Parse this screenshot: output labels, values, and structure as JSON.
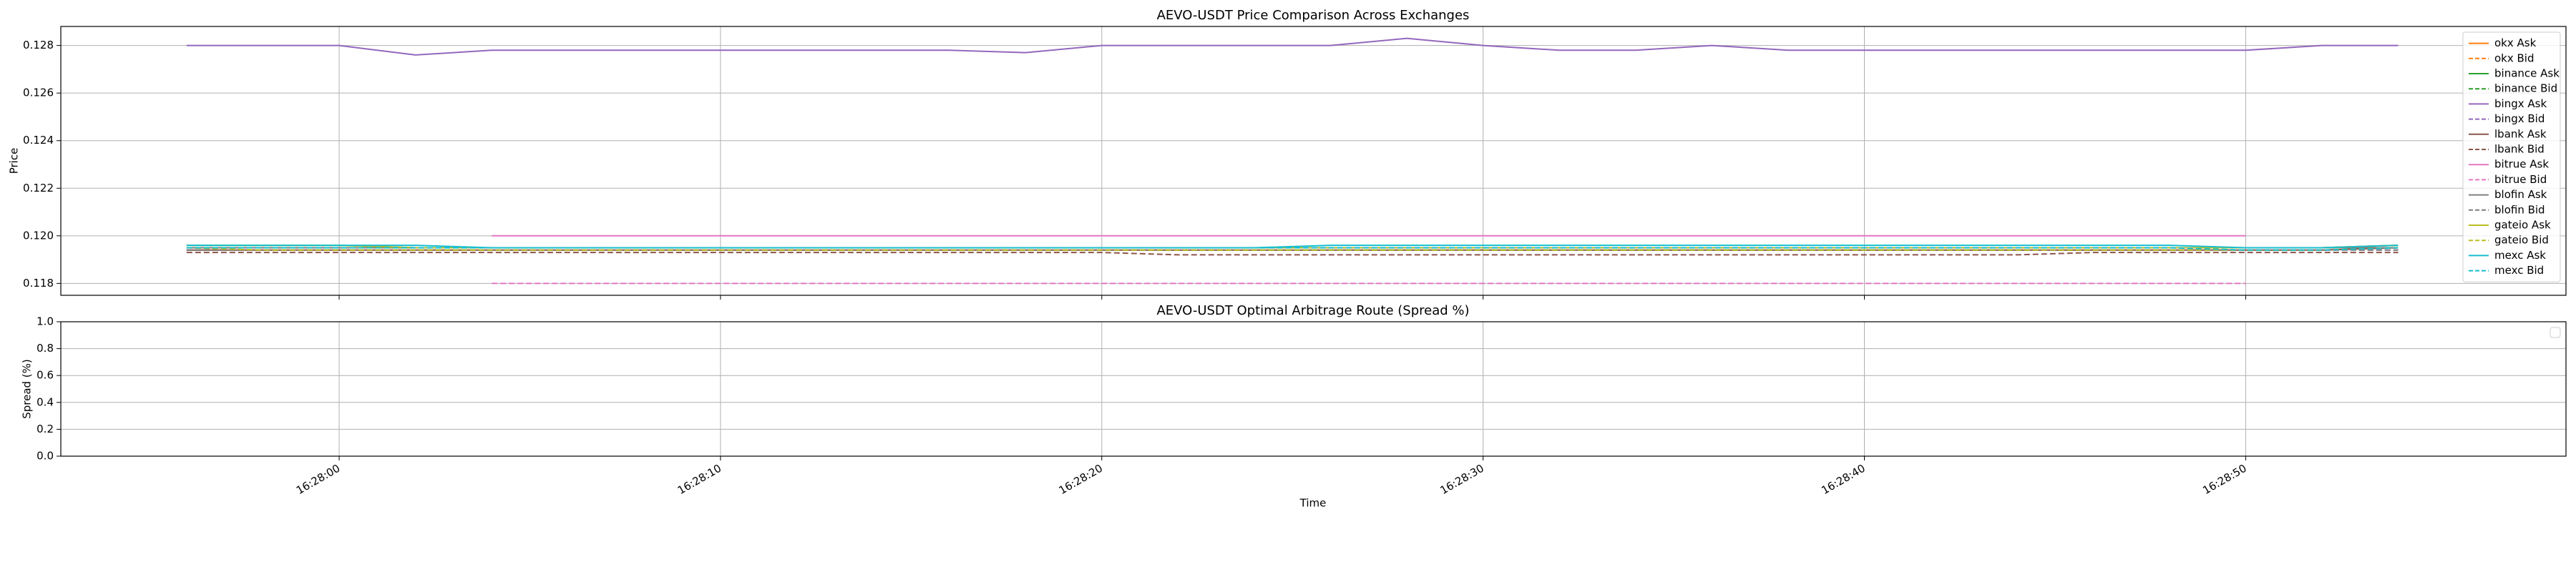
{
  "chart_data": [
    {
      "type": "line",
      "title": "AEVO-USDT Price Comparison Across Exchanges",
      "ylabel": "Price",
      "x": [
        "16:27:56",
        "16:27:58",
        "16:28:00",
        "16:28:02",
        "16:28:04",
        "16:28:06",
        "16:28:08",
        "16:28:10",
        "16:28:12",
        "16:28:14",
        "16:28:16",
        "16:28:18",
        "16:28:20",
        "16:28:22",
        "16:28:24",
        "16:28:26",
        "16:28:28",
        "16:28:30",
        "16:28:32",
        "16:28:34",
        "16:28:36",
        "16:28:38",
        "16:28:40",
        "16:28:42",
        "16:28:44",
        "16:28:46",
        "16:28:48",
        "16:28:50",
        "16:28:52",
        "16:28:54"
      ],
      "xlim": [
        "16:27:52.7",
        "16:28:58.4"
      ],
      "xticks": [
        "16:28:00",
        "16:28:10",
        "16:28:20",
        "16:28:30",
        "16:28:40",
        "16:28:50"
      ],
      "ylim": [
        0.1175,
        0.1288
      ],
      "yticks": [
        0.118,
        {
          "value": 0.12,
          "label": "0.120"
        },
        0.122,
        0.124,
        0.126,
        0.128
      ],
      "grid": true,
      "legend": "upper right",
      "series": [
        {
          "name": "okx Ask",
          "color": "#ff7f0e",
          "linestyle": "solid",
          "values": [
            0.1195,
            0.1195,
            0.1195,
            0.1195,
            0.1195,
            0.1195,
            0.1195,
            0.1195,
            0.1195,
            0.1195,
            0.1195,
            0.1195,
            0.1195,
            0.1195,
            0.1195,
            0.1195,
            0.1195,
            0.1195,
            0.1195,
            0.1195,
            0.1195,
            0.1195,
            0.1195,
            0.1195,
            0.1195,
            0.1195,
            0.1195,
            0.1195,
            0.1195,
            0.1196
          ]
        },
        {
          "name": "okx Bid",
          "color": "#ff7f0e",
          "linestyle": "dashed",
          "values": [
            0.1194,
            0.1194,
            0.1194,
            0.1194,
            0.1194,
            0.1194,
            0.1194,
            0.1194,
            0.1194,
            0.1194,
            0.1194,
            0.1194,
            0.1194,
            0.1194,
            0.1194,
            0.1194,
            0.1194,
            0.1194,
            0.1194,
            0.1194,
            0.1194,
            0.1194,
            0.1194,
            0.1194,
            0.1194,
            0.1194,
            0.1194,
            0.1194,
            0.1194,
            0.1195
          ]
        },
        {
          "name": "binance Ask",
          "color": "#2ca02c",
          "linestyle": "solid",
          "values": [
            0.1196,
            0.1196,
            0.1196,
            0.1195,
            0.1195,
            0.1195,
            0.1195,
            0.1195,
            0.1195,
            0.1195,
            0.1195,
            0.1195,
            0.1195,
            0.1195,
            0.1195,
            0.1195,
            0.1195,
            0.1195,
            0.1195,
            0.1195,
            0.1195,
            0.1195,
            0.1195,
            0.1195,
            0.1195,
            0.1195,
            0.1195,
            0.1195,
            0.1195,
            0.1196
          ]
        },
        {
          "name": "binance Bid",
          "color": "#2ca02c",
          "linestyle": "dashed",
          "values": [
            0.1194,
            0.1194,
            0.1194,
            0.1194,
            0.1194,
            0.1194,
            0.1194,
            0.1194,
            0.1194,
            0.1194,
            0.1194,
            0.1194,
            0.1194,
            0.1194,
            0.1194,
            0.1194,
            0.1194,
            0.1194,
            0.1194,
            0.1194,
            0.1194,
            0.1194,
            0.1194,
            0.1194,
            0.1194,
            0.1194,
            0.1194,
            0.1194,
            0.1194,
            0.1195
          ]
        },
        {
          "name": "bingx Ask",
          "color": "#9467bd",
          "linestyle": "solid",
          "values": [
            0.128,
            0.128,
            0.128,
            0.1276,
            0.1278,
            0.1278,
            0.1278,
            0.1278,
            0.1278,
            0.1278,
            0.1278,
            0.1277,
            0.128,
            0.128,
            0.128,
            0.128,
            0.1283,
            0.128,
            0.1278,
            0.1278,
            0.128,
            0.1278,
            0.1278,
            0.1278,
            0.1278,
            0.1278,
            0.1278,
            0.1278,
            0.128,
            0.128
          ]
        },
        {
          "name": "bingx Bid",
          "color": "#9467bd",
          "linestyle": "dashed",
          "values": [
            0.1194,
            0.1194,
            0.1194,
            0.1194,
            0.1194,
            0.1194,
            0.1194,
            0.1194,
            0.1194,
            0.1194,
            0.1194,
            0.1194,
            0.1194,
            0.1194,
            0.1194,
            0.1194,
            0.1194,
            0.1194,
            0.1194,
            0.1194,
            0.1194,
            0.1194,
            0.1194,
            0.1194,
            0.1194,
            0.1194,
            0.1194,
            0.1194,
            0.1194,
            0.1194
          ]
        },
        {
          "name": "lbank Ask",
          "color": "#8c564b",
          "linestyle": "solid",
          "values": [
            0.1194,
            0.1194,
            0.1194,
            0.1194,
            0.1194,
            0.1194,
            0.1194,
            0.1194,
            0.1194,
            0.1194,
            0.1194,
            0.1194,
            0.1194,
            0.1194,
            0.1194,
            0.1194,
            0.1194,
            0.1194,
            0.1194,
            0.1194,
            0.1194,
            0.1194,
            0.1194,
            0.1194,
            0.1194,
            0.1194,
            0.1194,
            0.1194,
            0.1194,
            0.1195
          ]
        },
        {
          "name": "lbank Bid",
          "color": "#8c564b",
          "linestyle": "dashed",
          "values": [
            0.1193,
            0.1193,
            0.1193,
            0.1193,
            0.1193,
            0.1193,
            0.1193,
            0.1193,
            0.1193,
            0.1193,
            0.1193,
            0.1193,
            0.1193,
            0.1192,
            0.1192,
            0.1192,
            0.1192,
            0.1192,
            0.1192,
            0.1192,
            0.1192,
            0.1192,
            0.1192,
            0.1192,
            0.1192,
            0.1193,
            0.1193,
            0.1193,
            0.1193,
            0.1193
          ]
        },
        {
          "name": "bitrue Ask",
          "color": "#e377c2",
          "linestyle": "solid",
          "values": [
            null,
            null,
            null,
            null,
            0.12,
            0.12,
            0.12,
            0.12,
            0.12,
            0.12,
            0.12,
            0.12,
            0.12,
            0.12,
            0.12,
            0.12,
            0.12,
            0.12,
            0.12,
            0.12,
            0.12,
            0.12,
            0.12,
            0.12,
            0.12,
            0.12,
            0.12,
            0.12,
            null,
            null
          ]
        },
        {
          "name": "bitrue Bid",
          "color": "#e377c2",
          "linestyle": "dashed",
          "values": [
            null,
            null,
            null,
            null,
            0.118,
            0.118,
            0.118,
            0.118,
            0.118,
            0.118,
            0.118,
            0.118,
            0.118,
            0.118,
            0.118,
            0.118,
            0.118,
            0.118,
            0.118,
            0.118,
            0.118,
            0.118,
            0.118,
            0.118,
            0.118,
            0.118,
            0.118,
            0.118,
            null,
            null
          ]
        },
        {
          "name": "blofin Ask",
          "color": "#7f7f7f",
          "linestyle": "solid",
          "values": [
            0.1195,
            0.1195,
            0.1195,
            0.1195,
            0.1195,
            0.1195,
            0.1195,
            0.1195,
            0.1195,
            0.1195,
            0.1195,
            0.1195,
            0.1195,
            0.1195,
            0.1195,
            0.1195,
            0.1195,
            0.1195,
            0.1195,
            0.1195,
            0.1195,
            0.1195,
            0.1195,
            0.1195,
            0.1195,
            0.1195,
            0.1195,
            0.1195,
            0.1195,
            0.1195
          ]
        },
        {
          "name": "blofin Bid",
          "color": "#7f7f7f",
          "linestyle": "dashed",
          "values": [
            0.1194,
            0.1194,
            0.1194,
            0.1194,
            0.1194,
            0.1194,
            0.1194,
            0.1194,
            0.1194,
            0.1194,
            0.1194,
            0.1194,
            0.1194,
            0.1194,
            0.1194,
            0.1194,
            0.1194,
            0.1194,
            0.1194,
            0.1194,
            0.1194,
            0.1194,
            0.1194,
            0.1194,
            0.1194,
            0.1194,
            0.1194,
            0.1194,
            0.1194,
            0.1194
          ]
        },
        {
          "name": "gateio Ask",
          "color": "#bcbd22",
          "linestyle": "solid",
          "values": [
            0.1196,
            0.1196,
            0.1196,
            0.1195,
            0.1195,
            0.1195,
            0.1195,
            0.1195,
            0.1195,
            0.1195,
            0.1195,
            0.1195,
            0.1195,
            0.1195,
            0.1195,
            0.1195,
            0.1195,
            0.1195,
            0.1195,
            0.1195,
            0.1195,
            0.1195,
            0.1195,
            0.1195,
            0.1195,
            0.1195,
            0.1195,
            0.1195,
            0.1195,
            0.1196
          ]
        },
        {
          "name": "gateio Bid",
          "color": "#bcbd22",
          "linestyle": "dashed",
          "values": [
            0.1195,
            0.1194,
            0.1194,
            0.1194,
            0.1194,
            0.1194,
            0.1194,
            0.1194,
            0.1194,
            0.1194,
            0.1194,
            0.1194,
            0.1194,
            0.1194,
            0.1194,
            0.1194,
            0.1194,
            0.1194,
            0.1194,
            0.1194,
            0.1194,
            0.1194,
            0.1194,
            0.1194,
            0.1194,
            0.1194,
            0.1194,
            0.1194,
            0.1194,
            0.1195
          ]
        },
        {
          "name": "mexc Ask",
          "color": "#17becf",
          "linestyle": "solid",
          "values": [
            0.1196,
            0.1196,
            0.1196,
            0.1196,
            0.1195,
            0.1195,
            0.1195,
            0.1195,
            0.1195,
            0.1195,
            0.1195,
            0.1195,
            0.1195,
            0.1195,
            0.1195,
            0.1196,
            0.1196,
            0.1196,
            0.1196,
            0.1196,
            0.1196,
            0.1196,
            0.1196,
            0.1196,
            0.1196,
            0.1196,
            0.1196,
            0.1195,
            0.1195,
            0.1196
          ]
        },
        {
          "name": "mexc Bid",
          "color": "#17becf",
          "linestyle": "dashed",
          "values": [
            0.1195,
            0.1195,
            0.1195,
            0.1195,
            0.1195,
            0.1195,
            0.1195,
            0.1195,
            0.1195,
            0.1195,
            0.1195,
            0.1195,
            0.1195,
            0.1195,
            0.1195,
            0.1195,
            0.1195,
            0.1195,
            0.1195,
            0.1195,
            0.1195,
            0.1195,
            0.1195,
            0.1195,
            0.1195,
            0.1195,
            0.1195,
            0.1194,
            0.1194,
            0.1195
          ]
        }
      ]
    },
    {
      "type": "line",
      "title": "AEVO-USDT Optimal Arbitrage Route (Spread %)",
      "ylabel": "Spread (%)",
      "xlabel": "Time",
      "xlim": [
        "16:27:52.7",
        "16:28:58.4"
      ],
      "xticks": [
        "16:28:00",
        "16:28:10",
        "16:28:20",
        "16:28:30",
        "16:28:40",
        "16:28:50"
      ],
      "ylim": [
        0,
        1
      ],
      "yticks": [
        {
          "value": 0,
          "label": "0.0"
        },
        0.2,
        0.4,
        0.6,
        0.8,
        {
          "value": 1,
          "label": "1.0"
        }
      ],
      "grid": true,
      "legend": "upper right",
      "series": []
    }
  ]
}
